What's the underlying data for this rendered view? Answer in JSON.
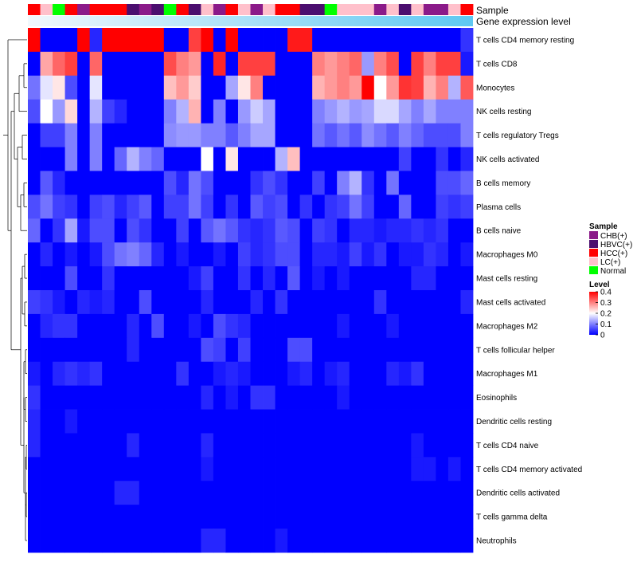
{
  "chart_data": {
    "type": "heatmap",
    "title": "",
    "annotation_tracks": [
      "Sample",
      "Gene expression level"
    ],
    "rows": [
      "T cells CD4 memory resting",
      "T cells CD8",
      "Monocytes",
      "NK cells resting",
      "T cells regulatory  Tregs",
      "NK cells activated",
      "B cells memory",
      "Plasma cells",
      "B cells naive",
      "Macrophages M0",
      "Mast cells resting",
      "Mast cells activated",
      "Macrophages M2",
      "T cells follicular helper",
      "Macrophages M1",
      "Eosinophils",
      "Dendritic cells resting",
      "T cells CD4 naive",
      "T cells CD4 memory activated",
      "Dendritic cells activated",
      "T cells gamma delta",
      "Neutrophils"
    ],
    "columns_count": 36,
    "sample_groups": [
      "HCC",
      "LC",
      "Normal",
      "HCC",
      "CHB",
      "HCC",
      "HCC",
      "HCC",
      "HBVC",
      "CHB",
      "HBVC",
      "Normal",
      "HCC",
      "HBVC",
      "LC",
      "CHB",
      "HCC",
      "LC",
      "CHB",
      "LC",
      "HCC",
      "HCC",
      "HBVC",
      "HBVC",
      "Normal",
      "LC",
      "LC",
      "LC",
      "CHB",
      "LC",
      "HBVC",
      "LC",
      "CHB",
      "CHB",
      "LC",
      "HCC"
    ],
    "values": [
      [
        0.4,
        0.0,
        0.0,
        0.0,
        0.4,
        0.03,
        0.4,
        0.4,
        0.4,
        0.4,
        0.4,
        0.0,
        0.0,
        0.35,
        0.4,
        0.0,
        0.4,
        0.0,
        0.0,
        0.0,
        0.0,
        0.38,
        0.38,
        0.0,
        0.0,
        0.0,
        0.0,
        0.0,
        0.0,
        0.0,
        0.0,
        0.0,
        0.0,
        0.0,
        0.0,
        0.04
      ],
      [
        0.0,
        0.27,
        0.32,
        0.35,
        0.0,
        0.32,
        0.0,
        0.0,
        0.0,
        0.0,
        0.0,
        0.34,
        0.3,
        0.28,
        0.0,
        0.37,
        0.0,
        0.35,
        0.35,
        0.35,
        0.0,
        0.0,
        0.0,
        0.3,
        0.28,
        0.3,
        0.32,
        0.12,
        0.3,
        0.34,
        0.0,
        0.35,
        0.3,
        0.35,
        0.35,
        0.02
      ],
      [
        0.09,
        0.18,
        0.22,
        0.06,
        0.0,
        0.18,
        0.0,
        0.0,
        0.0,
        0.0,
        0.0,
        0.25,
        0.28,
        0.24,
        0.0,
        0.0,
        0.13,
        0.22,
        0.3,
        0.0,
        0.0,
        0.0,
        0.0,
        0.26,
        0.28,
        0.3,
        0.28,
        0.4,
        0.2,
        0.28,
        0.36,
        0.35,
        0.26,
        0.3,
        0.14,
        0.33
      ],
      [
        0.06,
        0.2,
        0.12,
        0.23,
        0.0,
        0.14,
        0.05,
        0.03,
        0.0,
        0.0,
        0.0,
        0.1,
        0.14,
        0.26,
        0.0,
        0.1,
        0.0,
        0.12,
        0.16,
        0.13,
        0.0,
        0.0,
        0.0,
        0.1,
        0.12,
        0.14,
        0.12,
        0.13,
        0.17,
        0.17,
        0.13,
        0.1,
        0.13,
        0.1,
        0.1,
        0.1
      ],
      [
        0.0,
        0.05,
        0.05,
        0.1,
        0.0,
        0.1,
        0.0,
        0.0,
        0.0,
        0.0,
        0.0,
        0.11,
        0.12,
        0.12,
        0.1,
        0.1,
        0.07,
        0.1,
        0.13,
        0.13,
        0.0,
        0.0,
        0.0,
        0.09,
        0.07,
        0.09,
        0.07,
        0.11,
        0.09,
        0.07,
        0.1,
        0.08,
        0.06,
        0.06,
        0.06,
        0.1
      ],
      [
        0.0,
        0.0,
        0.0,
        0.1,
        0.0,
        0.1,
        0.0,
        0.08,
        0.14,
        0.1,
        0.08,
        0.0,
        0.0,
        0.0,
        0.2,
        0.0,
        0.22,
        0.0,
        0.0,
        0.0,
        0.14,
        0.25,
        0.0,
        0.0,
        0.0,
        0.0,
        0.0,
        0.0,
        0.0,
        0.0,
        0.05,
        0.0,
        0.0,
        0.04,
        0.0,
        0.03
      ],
      [
        0.0,
        0.07,
        0.03,
        0.0,
        0.0,
        0.0,
        0.0,
        0.0,
        0.0,
        0.0,
        0.0,
        0.06,
        0.03,
        0.09,
        0.06,
        0.0,
        0.0,
        0.0,
        0.04,
        0.06,
        0.04,
        0.0,
        0.0,
        0.05,
        0.0,
        0.1,
        0.14,
        0.04,
        0.0,
        0.09,
        0.0,
        0.0,
        0.0,
        0.06,
        0.06,
        0.08
      ],
      [
        0.06,
        0.09,
        0.05,
        0.04,
        0.0,
        0.05,
        0.06,
        0.03,
        0.05,
        0.07,
        0.0,
        0.05,
        0.05,
        0.09,
        0.05,
        0.0,
        0.04,
        0.0,
        0.07,
        0.05,
        0.06,
        0.0,
        0.04,
        0.0,
        0.04,
        0.05,
        0.09,
        0.05,
        0.0,
        0.0,
        0.08,
        0.0,
        0.0,
        0.05,
        0.04,
        0.05
      ],
      [
        0.08,
        0.0,
        0.04,
        0.13,
        0.02,
        0.06,
        0.06,
        0.0,
        0.06,
        0.04,
        0.0,
        0.0,
        0.05,
        0.0,
        0.07,
        0.09,
        0.07,
        0.04,
        0.03,
        0.04,
        0.07,
        0.06,
        0.0,
        0.05,
        0.04,
        0.0,
        0.03,
        0.03,
        0.02,
        0.03,
        0.03,
        0.04,
        0.03,
        0.04,
        0.0,
        0.0
      ],
      [
        0.0,
        0.03,
        0.0,
        0.02,
        0.0,
        0.02,
        0.06,
        0.09,
        0.1,
        0.08,
        0.03,
        0.0,
        0.02,
        0.0,
        0.0,
        0.02,
        0.0,
        0.05,
        0.03,
        0.04,
        0.06,
        0.06,
        0.0,
        0.03,
        0.03,
        0.02,
        0.05,
        0.02,
        0.04,
        0.0,
        0.02,
        0.02,
        0.04,
        0.03,
        0.0,
        0.02
      ],
      [
        0.0,
        0.0,
        0.0,
        0.06,
        0.0,
        0.0,
        0.04,
        0.0,
        0.0,
        0.0,
        0.0,
        0.0,
        0.0,
        0.02,
        0.05,
        0.0,
        0.0,
        0.04,
        0.0,
        0.03,
        0.0,
        0.07,
        0.0,
        0.02,
        0.0,
        0.02,
        0.0,
        0.0,
        0.0,
        0.0,
        0.0,
        0.03,
        0.03,
        0.0,
        0.0,
        0.0
      ],
      [
        0.05,
        0.04,
        0.02,
        0.0,
        0.03,
        0.02,
        0.03,
        0.0,
        0.0,
        0.06,
        0.0,
        0.0,
        0.0,
        0.0,
        0.03,
        0.0,
        0.0,
        0.0,
        0.03,
        0.0,
        0.04,
        0.0,
        0.0,
        0.0,
        0.0,
        0.0,
        0.0,
        0.0,
        0.04,
        0.0,
        0.0,
        0.0,
        0.0,
        0.0,
        0.0,
        0.03
      ],
      [
        0.0,
        0.03,
        0.04,
        0.04,
        0.0,
        0.0,
        0.0,
        0.0,
        0.03,
        0.0,
        0.06,
        0.0,
        0.0,
        0.02,
        0.0,
        0.06,
        0.04,
        0.03,
        0.0,
        0.0,
        0.0,
        0.0,
        0.0,
        0.0,
        0.0,
        0.02,
        0.0,
        0.0,
        0.0,
        0.02,
        0.0,
        0.0,
        0.0,
        0.0,
        0.0,
        0.0
      ],
      [
        0.0,
        0.0,
        0.0,
        0.0,
        0.0,
        0.0,
        0.0,
        0.0,
        0.03,
        0.0,
        0.0,
        0.0,
        0.0,
        0.0,
        0.06,
        0.05,
        0.0,
        0.05,
        0.0,
        0.0,
        0.0,
        0.06,
        0.06,
        0.0,
        0.0,
        0.0,
        0.0,
        0.0,
        0.0,
        0.0,
        0.0,
        0.0,
        0.0,
        0.0,
        0.0,
        0.0
      ],
      [
        0.02,
        0.0,
        0.03,
        0.04,
        0.03,
        0.04,
        0.0,
        0.0,
        0.0,
        0.0,
        0.0,
        0.0,
        0.04,
        0.0,
        0.0,
        0.02,
        0.03,
        0.02,
        0.0,
        0.0,
        0.0,
        0.02,
        0.03,
        0.0,
        0.02,
        0.03,
        0.0,
        0.0,
        0.0,
        0.03,
        0.02,
        0.04,
        0.0,
        0.0,
        0.0,
        0.0
      ],
      [
        0.04,
        0.0,
        0.0,
        0.0,
        0.0,
        0.0,
        0.0,
        0.0,
        0.0,
        0.0,
        0.0,
        0.0,
        0.0,
        0.0,
        0.03,
        0.0,
        0.02,
        0.0,
        0.04,
        0.04,
        0.0,
        0.0,
        0.0,
        0.0,
        0.0,
        0.02,
        0.0,
        0.0,
        0.0,
        0.0,
        0.0,
        0.0,
        0.0,
        0.0,
        0.0,
        0.0
      ],
      [
        0.03,
        0.0,
        0.0,
        0.02,
        0.0,
        0.0,
        0.0,
        0.0,
        0.0,
        0.0,
        0.0,
        0.0,
        0.0,
        0.0,
        0.0,
        0.0,
        0.0,
        0.0,
        0.0,
        0.0,
        0.0,
        0.0,
        0.0,
        0.0,
        0.0,
        0.0,
        0.0,
        0.0,
        0.0,
        0.0,
        0.0,
        0.0,
        0.0,
        0.0,
        0.0,
        0.0
      ],
      [
        0.03,
        0.0,
        0.0,
        0.0,
        0.0,
        0.0,
        0.0,
        0.0,
        0.03,
        0.0,
        0.0,
        0.0,
        0.0,
        0.0,
        0.03,
        0.0,
        0.0,
        0.0,
        0.0,
        0.0,
        0.0,
        0.0,
        0.0,
        0.0,
        0.0,
        0.0,
        0.0,
        0.0,
        0.0,
        0.0,
        0.0,
        0.02,
        0.0,
        0.0,
        0.0,
        0.0
      ],
      [
        0.0,
        0.0,
        0.0,
        0.0,
        0.0,
        0.0,
        0.0,
        0.0,
        0.0,
        0.0,
        0.0,
        0.0,
        0.0,
        0.0,
        0.02,
        0.0,
        0.0,
        0.0,
        0.0,
        0.0,
        0.0,
        0.0,
        0.0,
        0.0,
        0.0,
        0.0,
        0.0,
        0.0,
        0.0,
        0.0,
        0.0,
        0.02,
        0.02,
        0.0,
        0.02,
        0.0
      ],
      [
        0.0,
        0.0,
        0.0,
        0.0,
        0.0,
        0.0,
        0.0,
        0.03,
        0.03,
        0.0,
        0.0,
        0.0,
        0.0,
        0.0,
        0.0,
        0.0,
        0.0,
        0.0,
        0.0,
        0.0,
        0.0,
        0.0,
        0.0,
        0.0,
        0.0,
        0.0,
        0.0,
        0.0,
        0.0,
        0.0,
        0.0,
        0.0,
        0.0,
        0.0,
        0.0,
        0.0
      ],
      [
        0.0,
        0.0,
        0.0,
        0.0,
        0.0,
        0.0,
        0.0,
        0.0,
        0.0,
        0.0,
        0.0,
        0.0,
        0.0,
        0.0,
        0.0,
        0.0,
        0.0,
        0.0,
        0.0,
        0.0,
        0.0,
        0.0,
        0.0,
        0.0,
        0.0,
        0.0,
        0.0,
        0.0,
        0.0,
        0.0,
        0.0,
        0.0,
        0.0,
        0.0,
        0.0,
        0.0
      ],
      [
        0.0,
        0.0,
        0.0,
        0.0,
        0.0,
        0.0,
        0.0,
        0.0,
        0.0,
        0.0,
        0.0,
        0.0,
        0.0,
        0.0,
        0.03,
        0.03,
        0.0,
        0.0,
        0.0,
        0.0,
        0.02,
        0.0,
        0.0,
        0.0,
        0.0,
        0.0,
        0.0,
        0.0,
        0.0,
        0.0,
        0.0,
        0.0,
        0.0,
        0.0,
        0.0,
        0.0
      ]
    ],
    "color_scale": {
      "low": "#0000ff",
      "mid": "#ffffff",
      "high": "#ff0000",
      "range": [
        0,
        0.4
      ]
    },
    "legends": {
      "sample": {
        "title": "Sample",
        "entries": [
          {
            "key": "CHB",
            "label": "CHB(+)",
            "color": "#8b1a89"
          },
          {
            "key": "HBVC",
            "label": "HBVC(+)",
            "color": "#4b0e6f"
          },
          {
            "key": "HCC",
            "label": "HCC(+)",
            "color": "#ff0000"
          },
          {
            "key": "LC",
            "label": "LC(+)",
            "color": "#ffc0cb"
          },
          {
            "key": "Normal",
            "label": "Normal",
            "color": "#00ff00"
          }
        ]
      },
      "level": {
        "title": "Level",
        "ticks": [
          0.4,
          0.3,
          0.2,
          0.1,
          0
        ],
        "tick_labels": [
          "0.4",
          "0.3",
          "0.2",
          "0.1",
          "0"
        ]
      }
    },
    "expression_bar": {
      "from": "#f1f8fd",
      "to": "#5ec8f2"
    },
    "dendrogram": "row clustering (hierarchical)"
  }
}
